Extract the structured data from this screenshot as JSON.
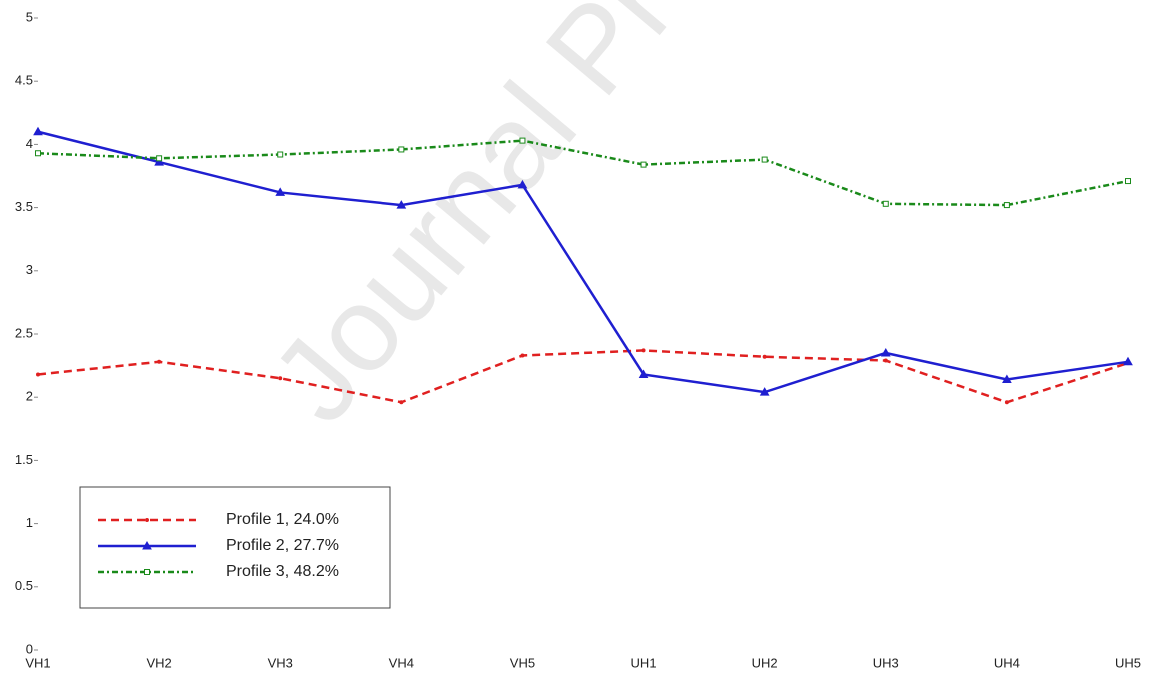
{
  "chart_data": {
    "type": "line",
    "watermark": "Journal Pr",
    "categories": [
      "VH1",
      "VH2",
      "VH3",
      "VH4",
      "VH5",
      "UH1",
      "UH2",
      "UH3",
      "UH4",
      "UH5"
    ],
    "series": [
      {
        "name": "Profile 1, 24.0%",
        "color": "#e02020",
        "line_style": "dashed",
        "marker": "dot",
        "values": [
          2.18,
          2.28,
          2.15,
          1.96,
          2.33,
          2.37,
          2.32,
          2.29,
          1.96,
          2.27
        ]
      },
      {
        "name": "Profile 2, 27.7%",
        "color": "#1f1fd0",
        "line_style": "solid",
        "marker": "triangle",
        "values": [
          4.1,
          3.86,
          3.62,
          3.52,
          3.68,
          2.18,
          2.04,
          2.35,
          2.14,
          2.28
        ]
      },
      {
        "name": "Profile 3, 48.2%",
        "color": "#1a8a1a",
        "line_style": "dashdot",
        "marker": "square",
        "values": [
          3.93,
          3.89,
          3.92,
          3.96,
          4.03,
          3.84,
          3.88,
          3.53,
          3.52,
          3.71
        ]
      }
    ],
    "ylim": [
      0,
      5
    ],
    "yticks": [
      0,
      0.5,
      1,
      1.5,
      2,
      2.5,
      3,
      3.5,
      4,
      4.5,
      5
    ],
    "grid": false,
    "legend": "lower left"
  }
}
